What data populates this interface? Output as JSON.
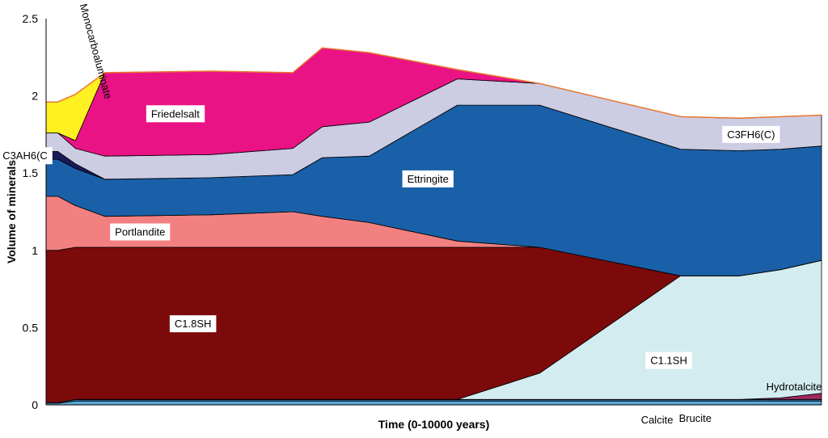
{
  "chart_data": {
    "type": "area",
    "xlabel": "Time (0-10000 years)",
    "ylabel": "Volume of minerals",
    "ylim": [
      0,
      2.5
    ],
    "yticks": [
      "0",
      "0.5",
      "1",
      "1.5",
      "2",
      "2.5"
    ],
    "x": [
      0,
      2,
      5,
      10,
      28,
      42,
      47,
      55,
      70,
      84,
      108,
      118,
      125,
      132
    ],
    "series": [
      {
        "name": "Calcite",
        "values": [
          0.01,
          0.01,
          0.025,
          0.025,
          0.025,
          0.025,
          0.025,
          0.025,
          0.025,
          0.025,
          0.025,
          0.025,
          0.025,
          0.025
        ],
        "color": "#5AA9D6"
      },
      {
        "name": "Brucite",
        "values": [
          0.005,
          0.005,
          0.01,
          0.01,
          0.01,
          0.01,
          0.01,
          0.01,
          0.01,
          0.01,
          0.01,
          0.01,
          0.01,
          0.01
        ],
        "color": "#3A7DB0"
      },
      {
        "name": "Hydrotalcite",
        "values": [
          0,
          0,
          0,
          0,
          0,
          0,
          0,
          0,
          0,
          0,
          0,
          0,
          0.01,
          0.04
        ],
        "color": "#9E2A5E"
      },
      {
        "name": "C1.1SH",
        "values": [
          0,
          0,
          0,
          0,
          0,
          0,
          0,
          0,
          0,
          0.17,
          0.8,
          0.8,
          0.83,
          0.86
        ],
        "color": "#D3ECEF"
      },
      {
        "name": "C1.8SH",
        "values": [
          0.985,
          0.985,
          0.985,
          0.985,
          0.985,
          0.985,
          0.985,
          0.985,
          0.985,
          0.815,
          0,
          0,
          0,
          0
        ],
        "color": "#7C0A0A"
      },
      {
        "name": "Portlandite",
        "values": [
          0.35,
          0.35,
          0.27,
          0.2,
          0.21,
          0.23,
          0.2,
          0.16,
          0.04,
          0,
          0,
          0,
          0,
          0
        ],
        "color": "#F28080"
      },
      {
        "name": "Ettringite",
        "values": [
          0.24,
          0.24,
          0.24,
          0.24,
          0.24,
          0.24,
          0.38,
          0.43,
          0.88,
          0.92,
          0.82,
          0.81,
          0.78,
          0.74
        ],
        "color": "#1A60A8"
      },
      {
        "name": "C3AH6(C",
        "values": [
          0.05,
          0.05,
          0.03,
          0,
          0,
          0,
          0,
          0,
          0,
          0,
          0,
          0,
          0,
          0
        ],
        "color": "#1A1A5A"
      },
      {
        "name": "C3FH6(C)",
        "values": [
          0.12,
          0.12,
          0.1,
          0.15,
          0.15,
          0.17,
          0.2,
          0.22,
          0.17,
          0.14,
          0.21,
          0.21,
          0.21,
          0.2
        ],
        "color": "#CCCCE3"
      },
      {
        "name": "Friedelsalt",
        "values": [
          0,
          0,
          0.05,
          0.54,
          0.54,
          0.49,
          0.51,
          0.45,
          0.06,
          0,
          0,
          0,
          0,
          0
        ],
        "color": "#EA1385"
      },
      {
        "name": "Monocarboaluminate",
        "values": [
          0.2,
          0.2,
          0.3,
          0,
          0,
          0,
          0,
          0,
          0,
          0,
          0,
          0,
          0,
          0
        ],
        "color": "#FFF022"
      }
    ],
    "labels": [
      {
        "text": "Friedelsalt",
        "series": "Friedelsalt",
        "boxed": true
      },
      {
        "text": "Monocarboaluminate",
        "series": "Monocarboaluminate",
        "boxed": false,
        "vertical": true
      },
      {
        "text": "C3AH6(C",
        "series": "C3AH6(C",
        "boxed": true
      },
      {
        "text": "C3FH6(C)",
        "series": "C3FH6(C)",
        "boxed": true
      },
      {
        "text": "Ettringite",
        "series": "Ettringite",
        "boxed": true
      },
      {
        "text": "Portlandite",
        "series": "Portlandite",
        "boxed": true
      },
      {
        "text": "C1.8SH",
        "series": "C1.8SH",
        "boxed": true
      },
      {
        "text": "C1.1SH",
        "series": "C1.1SH",
        "boxed": true
      },
      {
        "text": "Hydrotalcite",
        "series": "Hydrotalcite",
        "boxed": false
      },
      {
        "text": "Calcite",
        "series": "Calcite",
        "boxed": false
      },
      {
        "text": "Brucite",
        "series": "Brucite",
        "boxed": false
      }
    ],
    "top_line_color": "#E9782F",
    "grid": false,
    "legend": "none"
  }
}
